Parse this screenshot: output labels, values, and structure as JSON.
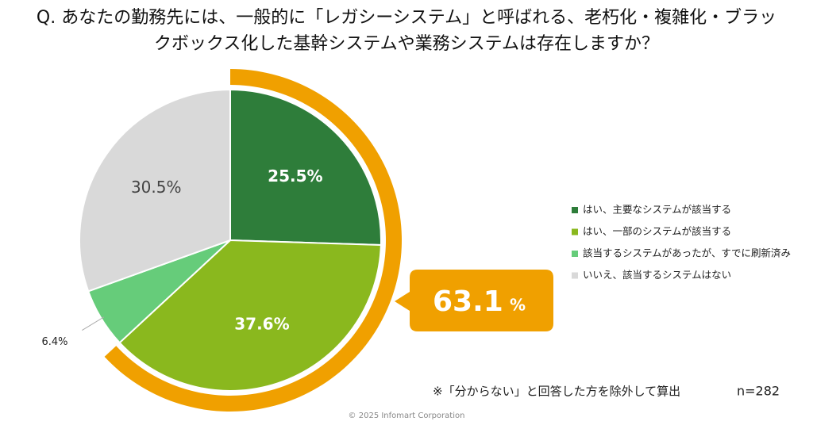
{
  "chart_data": {
    "type": "pie",
    "title": "Q. あなたの勤務先には、一般的に「レガシーシステム」と呼ばれる、老朽化・複雑化・ブラックボックス化した基幹システムや業務システムは存在しますか？",
    "categories": [
      "はい、主要なシステムが該当する",
      "はい、一部のシステムが該当する",
      "該当するシステムがあったが、すでに刷新済み",
      "いいえ、該当するシステムはない"
    ],
    "values": [
      25.5,
      37.6,
      6.4,
      30.5
    ],
    "value_labels": [
      "25.5%",
      "37.6%",
      "6.4%",
      "30.5%"
    ],
    "colors": [
      "#2e7d3a",
      "#8ab81e",
      "#66cc7a",
      "#d9d9d9"
    ],
    "highlight_value": 63.1,
    "highlight_unit": "%",
    "highlight_color": "#f0a000",
    "note": "※「分からない」と回答した方を除外して算出",
    "sample": "n=282",
    "footer": "© 2025 Infomart Corporation"
  }
}
